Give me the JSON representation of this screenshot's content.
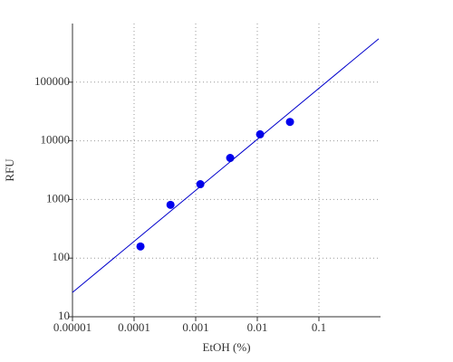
{
  "chart_data": {
    "type": "scatter",
    "x_label": "EtOH (%)",
    "y_label": "RFU",
    "xscale": "log",
    "yscale": "log",
    "xlim": [
      1e-05,
      1
    ],
    "ylim": [
      10,
      1000000
    ],
    "xticks": [
      {
        "value": 1e-05,
        "label": "0.00001"
      },
      0.0001,
      0.001,
      0.01,
      0.1
    ],
    "yticks": [
      10,
      100,
      1000,
      10000,
      100000
    ],
    "grid": true,
    "series": [
      {
        "color": "#0000ee",
        "kind": "points",
        "x": [
          0.000127,
          0.00039,
          0.00119,
          0.00363,
          0.0111,
          0.0339
        ],
        "values": [
          158,
          810,
          1820,
          5100,
          12900,
          21000
        ]
      },
      {
        "color": "#0000cc",
        "kind": "line",
        "x": [
          1e-05,
          0.935
        ],
        "values": [
          26,
          550000
        ]
      }
    ]
  }
}
